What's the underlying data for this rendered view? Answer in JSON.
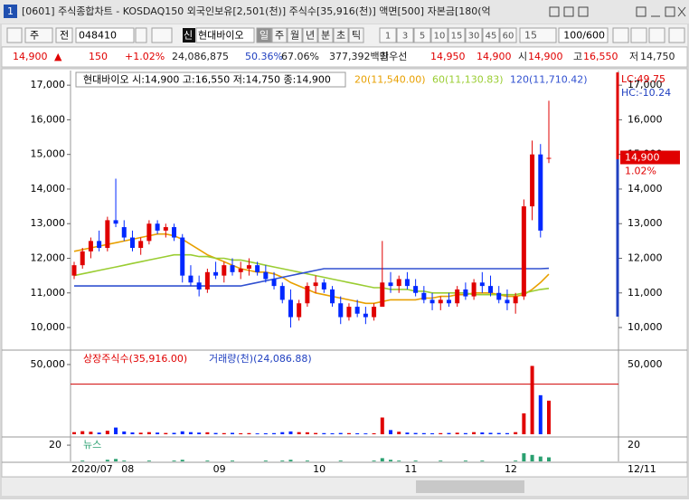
{
  "window": {
    "icon": "1",
    "title": "[0601] 주식종합차트 - KOSDAQ150 외국인보유[2,501(천)] 주식수[35,916(천)] 액면[500] 자본금[180(억"
  },
  "toolbar": {
    "period": "주",
    "scope": "전",
    "code": "048410",
    "badge": "신",
    "name": "현대바이오",
    "periods": [
      "일",
      "주",
      "월",
      "년",
      "분",
      "초",
      "틱"
    ],
    "intervals": [
      "1",
      "3",
      "5",
      "10",
      "15",
      "30",
      "45",
      "60"
    ],
    "interval_select": "15",
    "count": "100/600"
  },
  "quote": {
    "price": "14,900",
    "arrow": "▲",
    "change": "150",
    "change_pct": "+1.02%",
    "volume": "24,086,875",
    "ratio1": "50.36%",
    "ratio2": "67.06%",
    "trade_value": "377,392백만",
    "best_label": "최우선",
    "ask": "14,950",
    "bid": "14,900",
    "open_label": "시",
    "open": "14,900",
    "high_label": "고",
    "high": "16,550",
    "low_label": "저",
    "low": "14,750"
  },
  "chart_data": {
    "type": "candlestick",
    "legend_text": "현대바이오 시:14,900 고:16,550 저:14,750 종:14,900",
    "categories": [
      "2020/07",
      null,
      null,
      null,
      null,
      null,
      "08",
      null,
      null,
      null,
      null,
      null,
      null,
      null,
      null,
      null,
      null,
      "09",
      null,
      null,
      null,
      null,
      null,
      null,
      null,
      null,
      null,
      null,
      null,
      "10",
      null,
      null,
      null,
      null,
      null,
      null,
      null,
      null,
      null,
      null,
      "11",
      null,
      null,
      null,
      null,
      null,
      null,
      null,
      null,
      null,
      null,
      null,
      "12",
      null,
      null,
      null,
      null,
      null
    ],
    "open": [
      11500,
      11800,
      12200,
      12500,
      12300,
      13100,
      12900,
      12600,
      12300,
      12500,
      13000,
      12800,
      12900,
      12600,
      11500,
      11300,
      11100,
      11600,
      11500,
      11800,
      11600,
      11700,
      11800,
      11600,
      11400,
      11200,
      10800,
      10300,
      10700,
      11200,
      11300,
      11100,
      10700,
      10300,
      10600,
      10400,
      10300,
      10600,
      11300,
      11200,
      11400,
      11200,
      11000,
      10800,
      10700,
      10800,
      10700,
      11100,
      10900,
      11300,
      11200,
      11000,
      10800,
      10700,
      10900,
      13500,
      15000,
      14900
    ],
    "high": [
      11900,
      12300,
      12600,
      12800,
      13200,
      14300,
      13100,
      12800,
      12600,
      13100,
      13100,
      13000,
      13000,
      12700,
      11800,
      11500,
      11700,
      11900,
      11900,
      12000,
      11900,
      12000,
      11900,
      11800,
      11600,
      11300,
      11100,
      10800,
      11300,
      11500,
      11400,
      11200,
      10900,
      10700,
      10800,
      10600,
      10700,
      12500,
      11600,
      11500,
      11600,
      11400,
      11200,
      11000,
      10900,
      11000,
      11200,
      11300,
      11400,
      11600,
      11500,
      11200,
      11100,
      11000,
      13700,
      15400,
      15300,
      16550
    ],
    "low": [
      11400,
      11700,
      12000,
      12200,
      12200,
      12900,
      12500,
      12200,
      12100,
      12400,
      12700,
      12600,
      12500,
      11300,
      11200,
      10900,
      11000,
      11400,
      11300,
      11500,
      11400,
      11500,
      11500,
      11300,
      11100,
      10700,
      10000,
      10200,
      10600,
      11000,
      11000,
      10600,
      10100,
      10200,
      10300,
      10100,
      10200,
      10600,
      11000,
      11000,
      11100,
      10900,
      10700,
      10500,
      10500,
      10600,
      10600,
      10800,
      10800,
      11000,
      10900,
      10700,
      10500,
      10400,
      10800,
      13100,
      12600,
      14750
    ],
    "close": [
      11800,
      12200,
      12500,
      12300,
      13100,
      13000,
      12600,
      12300,
      12500,
      13000,
      12800,
      12900,
      12600,
      11500,
      11300,
      11100,
      11600,
      11500,
      11800,
      11600,
      11700,
      11800,
      11600,
      11400,
      11200,
      10800,
      10300,
      10700,
      11200,
      11300,
      11100,
      10700,
      10300,
      10600,
      10400,
      10300,
      10600,
      11300,
      11200,
      11400,
      11200,
      11000,
      10800,
      10700,
      10800,
      10700,
      11100,
      10900,
      11300,
      11200,
      11000,
      10800,
      10700,
      10900,
      13500,
      15000,
      12800,
      14900
    ],
    "up_color": "#e00000",
    "down_color": "#0028ff",
    "ylim": [
      9400,
      17370
    ],
    "yticks": [
      {
        "value": 10000,
        "label": "10,000"
      },
      {
        "value": 11000,
        "label": "11,000"
      },
      {
        "value": 12000,
        "label": "12,000"
      },
      {
        "value": 13000,
        "label": "13,000"
      },
      {
        "value": 14000,
        "label": "14,000"
      },
      {
        "value": 15000,
        "label": "15,000"
      },
      {
        "value": 16000,
        "label": "16,000"
      },
      {
        "value": 17000,
        "label": "17,000"
      }
    ],
    "ma_series": [
      {
        "name": "20(11,540.00)",
        "color": "#e8a000",
        "values": [
          12200,
          12250,
          12300,
          12350,
          12400,
          12450,
          12500,
          12550,
          12600,
          12650,
          12700,
          12700,
          12650,
          12550,
          12400,
          12250,
          12100,
          12000,
          11900,
          11800,
          11700,
          11650,
          11600,
          11600,
          11550,
          11450,
          11300,
          11200,
          11100,
          11000,
          10950,
          10900,
          10850,
          10800,
          10750,
          10700,
          10700,
          10750,
          10800,
          10800,
          10800,
          10800,
          10850,
          10850,
          10900,
          10900,
          10950,
          10950,
          11000,
          11000,
          11000,
          10950,
          10900,
          10900,
          10950,
          11100,
          11300,
          11540
        ]
      },
      {
        "name": "60(11,130.83)",
        "color": "#9acd32",
        "values": [
          11500,
          11550,
          11600,
          11650,
          11700,
          11750,
          11800,
          11850,
          11900,
          11950,
          12000,
          12050,
          12100,
          12100,
          12100,
          12050,
          12050,
          12000,
          12000,
          11950,
          11950,
          11900,
          11850,
          11800,
          11750,
          11700,
          11650,
          11600,
          11550,
          11500,
          11450,
          11400,
          11350,
          11300,
          11250,
          11200,
          11150,
          11150,
          11100,
          11100,
          11100,
          11050,
          11050,
          11000,
          11000,
          11000,
          11000,
          11000,
          10950,
          10950,
          10950,
          10950,
          10950,
          10950,
          11000,
          11050,
          11100,
          11130
        ]
      },
      {
        "name": "120(11,710.42)",
        "color": "#3050d0",
        "values": [
          11200,
          11200,
          11200,
          11200,
          11200,
          11200,
          11200,
          11200,
          11200,
          11200,
          11200,
          11200,
          11200,
          11200,
          11200,
          11200,
          11200,
          11200,
          11200,
          11200,
          11200,
          11250,
          11300,
          11350,
          11400,
          11450,
          11500,
          11550,
          11600,
          11650,
          11700,
          11700,
          11700,
          11700,
          11700,
          11700,
          11700,
          11700,
          11700,
          11700,
          11700,
          11700,
          11700,
          11700,
          11700,
          11700,
          11700,
          11700,
          11700,
          11700,
          11700,
          11700,
          11700,
          11700,
          11700,
          11700,
          11700,
          11710
        ]
      }
    ],
    "lc_label": "LC:49.75",
    "hc_label": "HC:-10.24",
    "last_price_label": "14,900",
    "last_change_label": "1.02%",
    "volume": {
      "listed_label": "상장주식수(35,916.00)",
      "listed_shares": 35916,
      "volume_label": "거래량(천)(24,086.88)",
      "values": [
        1500,
        2200,
        1800,
        1200,
        2500,
        4800,
        2000,
        1300,
        1100,
        1500,
        1200,
        900,
        1000,
        2100,
        1500,
        1200,
        1400,
        900,
        800,
        1000,
        700,
        800,
        600,
        700,
        800,
        1500,
        2000,
        1500,
        1400,
        900,
        800,
        700,
        900,
        800,
        700,
        600,
        700,
        12000,
        3000,
        1800,
        1200,
        900,
        800,
        700,
        800,
        900,
        1100,
        800,
        1500,
        1300,
        1000,
        900,
        800,
        1500,
        15000,
        49000,
        28000,
        24086.88
      ],
      "ylim": [
        0,
        58400
      ],
      "yticks": [
        {
          "value": 50000,
          "label": "50,000"
        }
      ]
    },
    "news": {
      "title": "뉴스",
      "color": "#2aa070",
      "values": [
        0,
        1,
        0,
        0,
        2,
        3,
        1,
        0,
        0,
        1,
        0,
        0,
        1,
        2,
        0,
        0,
        1,
        0,
        0,
        1,
        0,
        0,
        0,
        1,
        0,
        1,
        2,
        0,
        1,
        0,
        0,
        0,
        1,
        0,
        0,
        0,
        1,
        4,
        2,
        1,
        0,
        1,
        0,
        0,
        1,
        0,
        0,
        1,
        0,
        1,
        0,
        0,
        0,
        1,
        10,
        8,
        6,
        5
      ],
      "ylim": [
        0,
        29
      ],
      "yticks": [
        20
      ]
    },
    "date_label": "12/11"
  }
}
